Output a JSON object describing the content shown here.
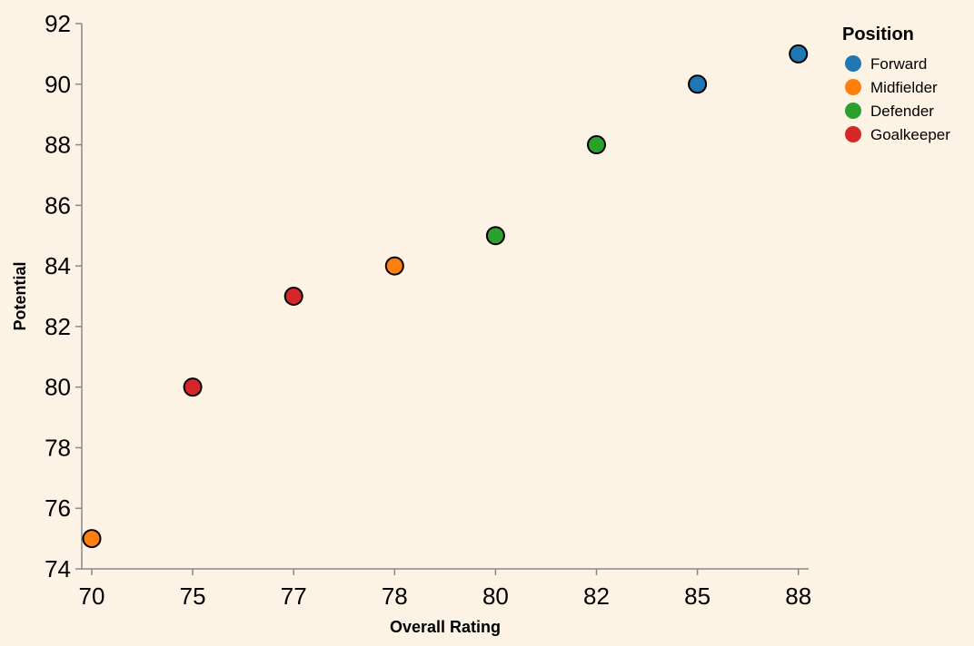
{
  "chart_data": {
    "type": "scatter",
    "title": "",
    "xlabel": "Overall Rating",
    "ylabel": "Potential",
    "x_type": "ordinal",
    "x_categories": [
      "70",
      "75",
      "77",
      "78",
      "80",
      "82",
      "85",
      "88"
    ],
    "ylim": [
      74,
      92
    ],
    "y_ticks": [
      74,
      76,
      78,
      80,
      82,
      84,
      86,
      88,
      90,
      92
    ],
    "grid": false,
    "legend": {
      "title": "Position",
      "placement": "top-right",
      "entries": [
        "Forward",
        "Midfielder",
        "Defender",
        "Goalkeeper"
      ]
    },
    "colors": {
      "Forward": "#1f77b4",
      "Midfielder": "#ff7f0e",
      "Defender": "#2ca02c",
      "Goalkeeper": "#d62728"
    },
    "points": [
      {
        "x": "70",
        "y": 75,
        "position": "Midfielder"
      },
      {
        "x": "75",
        "y": 80,
        "position": "Goalkeeper"
      },
      {
        "x": "77",
        "y": 83,
        "position": "Goalkeeper"
      },
      {
        "x": "78",
        "y": 84,
        "position": "Midfielder"
      },
      {
        "x": "80",
        "y": 85,
        "position": "Defender"
      },
      {
        "x": "82",
        "y": 88,
        "position": "Defender"
      },
      {
        "x": "85",
        "y": 90,
        "position": "Forward"
      },
      {
        "x": "88",
        "y": 91,
        "position": "Forward"
      }
    ]
  }
}
